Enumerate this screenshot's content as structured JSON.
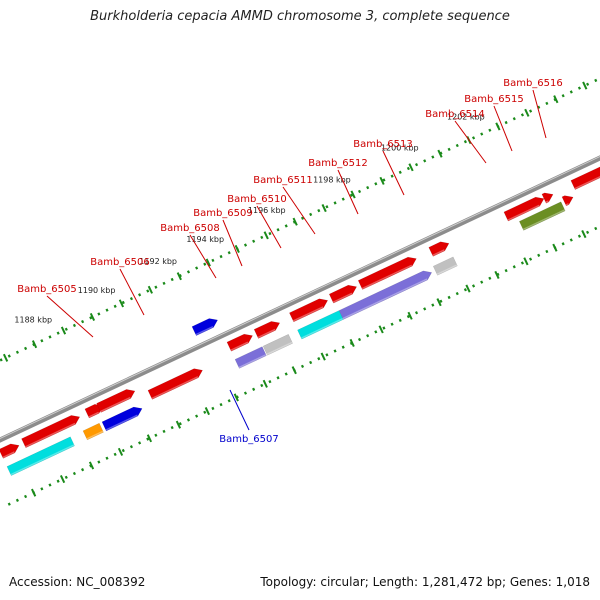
{
  "title": "Burkholderia cepacia AMMD chromosome 3, complete sequence",
  "footer": {
    "accession": "Accession: NC_008392",
    "summary": "Topology: circular; Length: 1,281,472 bp; Genes: 1,018"
  },
  "colors": {
    "forward_gene": "#e00000",
    "cds_cyan": "#00dede",
    "cds_blue": "#0000dd",
    "cds_purple": "#7b6fd8",
    "cds_grey": "#c0c0c0",
    "cds_olive": "#6b8e23",
    "cds_orange": "#ff9900",
    "tick_green": "#1a8a1a",
    "label_red": "#cc0000",
    "label_blue": "#0000cc",
    "backbone": "#999999"
  },
  "tick_labels": [
    "1188 kbp",
    "1190 kbp",
    "1192 kbp",
    "1194 kbp",
    "1196 kbp",
    "1198 kbp",
    "1200 kbp",
    "1202 kbp"
  ],
  "gene_labels": [
    {
      "text": "Bamb_6505",
      "strand": "forward"
    },
    {
      "text": "Bamb_6506",
      "strand": "forward"
    },
    {
      "text": "Bamb_6507",
      "strand": "reverse"
    },
    {
      "text": "Bamb_6508",
      "strand": "forward"
    },
    {
      "text": "Bamb_6509",
      "strand": "forward"
    },
    {
      "text": "Bamb_6510",
      "strand": "forward"
    },
    {
      "text": "Bamb_6511",
      "strand": "forward"
    },
    {
      "text": "Bamb_6512",
      "strand": "forward"
    },
    {
      "text": "Bamb_6513",
      "strand": "forward"
    },
    {
      "text": "Bamb_6514",
      "strand": "forward"
    },
    {
      "text": "Bamb_6515",
      "strand": "forward"
    },
    {
      "text": "Bamb_6516",
      "strand": "forward"
    }
  ]
}
